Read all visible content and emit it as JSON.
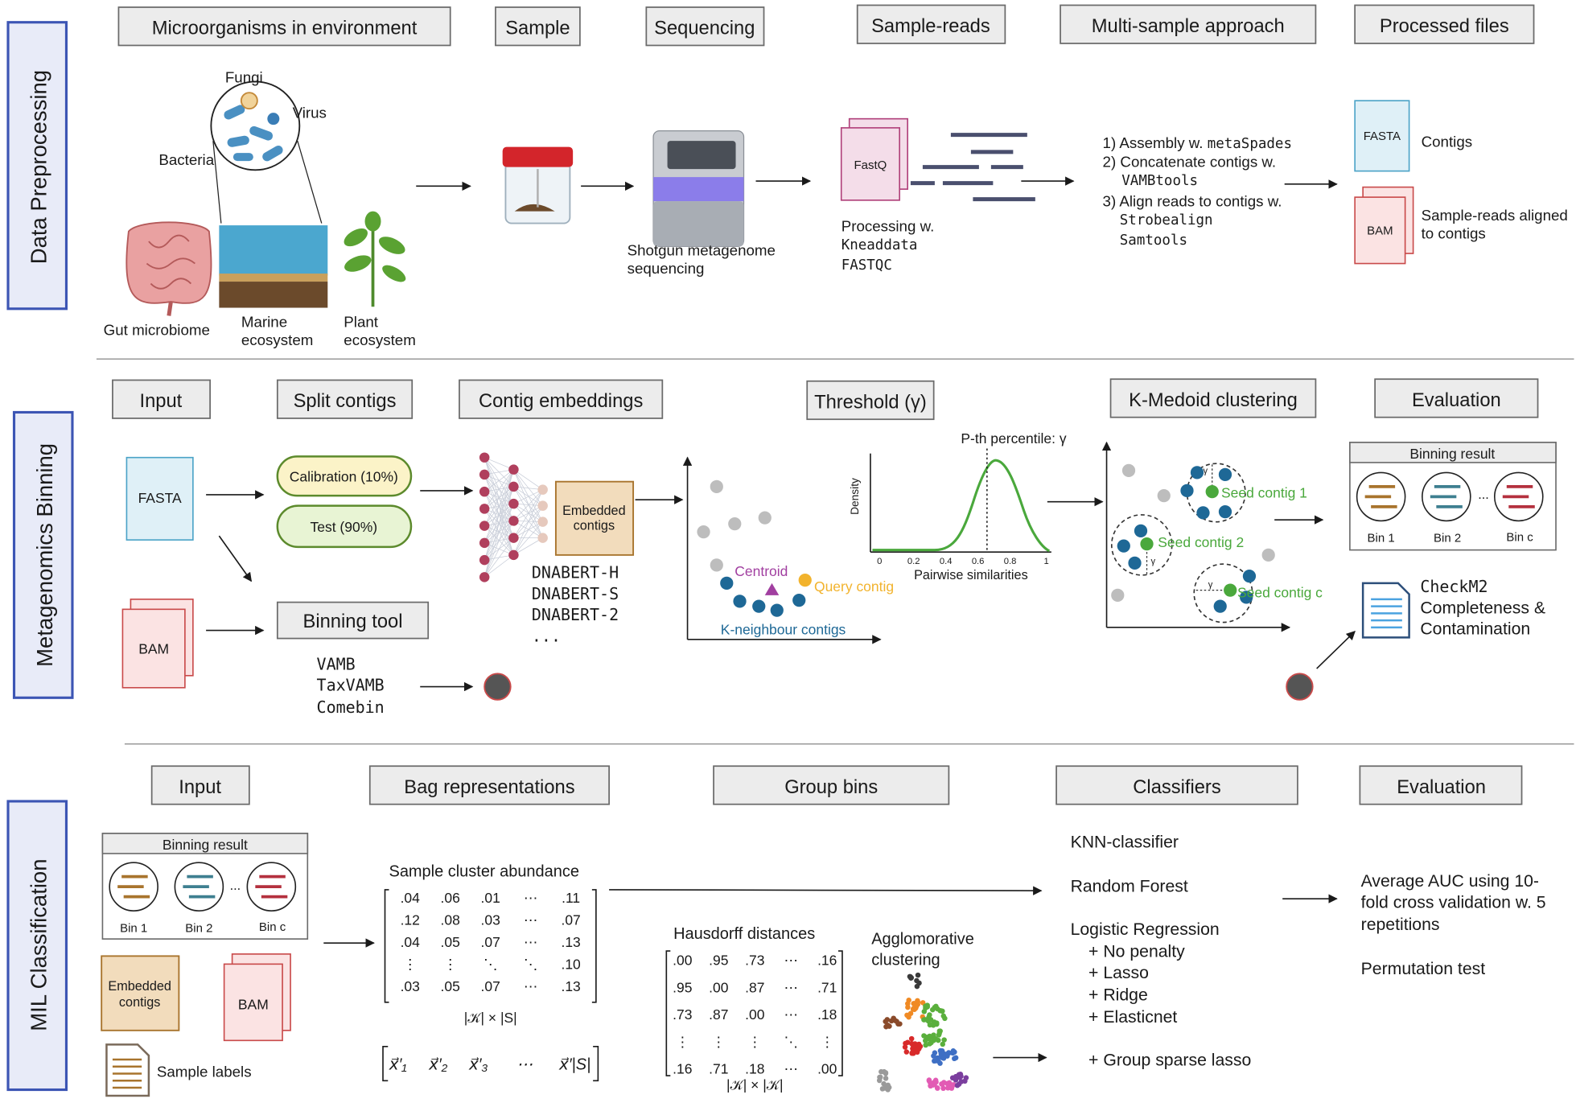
{
  "sections": {
    "preprocessing": "Data Preprocessing",
    "binning": "Metagenomics Binning",
    "mil": "MIL Classification"
  },
  "pre": {
    "h_env": "Microorganisms in environment",
    "h_sample": "Sample",
    "h_seq": "Sequencing",
    "h_reads": "Sample-reads",
    "h_multi": "Multi-sample approach",
    "h_processed": "Processed files",
    "fungi": "Fungi",
    "virus": "Virus",
    "bacteria": "Bacteria",
    "gut": "Gut microbiome",
    "marine_1": "Marine",
    "marine_2": "ecosystem",
    "plant_1": "Plant",
    "plant_2": "ecosystem",
    "seq_1": "Shotgun metagenome",
    "seq_2": "sequencing",
    "fastq": "FastQ",
    "proc_1": "Processing w.",
    "proc_2": "Kneaddata",
    "proc_3": "FASTQC",
    "m1a": "1) Assembly w. ",
    "m1b": "metaSpades",
    "m2": "2) Concatenate contigs w.",
    "m2b": "VAMBtools",
    "m3": "3) Align reads to contigs w.",
    "m3b": "Strobealign",
    "m3c": "Samtools",
    "fasta": "FASTA",
    "contigs": "Contigs",
    "bam": "BAM",
    "aligned_1": "Sample-reads aligned",
    "aligned_2": "to contigs"
  },
  "bin": {
    "h_input": "Input",
    "h_split": "Split contigs",
    "h_embed": "Contig embeddings",
    "h_threshold": "Threshold (γ)",
    "h_kmedoid": "K-Medoid clustering",
    "h_eval": "Evaluation",
    "fasta": "FASTA",
    "bam": "BAM",
    "calibration": "Calibration (10%)",
    "test": "Test (90%)",
    "tool": "Binning tool",
    "tools": [
      "VAMB",
      "TaxVAMB",
      "Comebin"
    ],
    "embedded_1": "Embedded",
    "embedded_2": "contigs",
    "models": [
      "DNABERT-H",
      "DNABERT-S",
      "DNABERT-2",
      "..."
    ],
    "centroid": "Centroid",
    "query": "Query contig",
    "kneighbour": "K-neighbour contigs",
    "percentile": "P-th percentile: γ",
    "density": "Density",
    "pairwise": "Pairwise similarities",
    "ticks": [
      "0",
      "0.2",
      "0.4",
      "0.6",
      "0.8",
      "1"
    ],
    "seed_1": "Seed contig 1",
    "seed_2": "Seed contig 2",
    "seed_c": "Seed contig c",
    "gamma": "γ",
    "binning_result": "Binning result",
    "bin1": "Bin 1",
    "bin2": "Bin 2",
    "binc": "Bin c",
    "dots": "...",
    "checkm_1": "CheckM2",
    "checkm_2": "Completeness &",
    "checkm_3": "Contamination"
  },
  "mil": {
    "h_input": "Input",
    "h_bag": "Bag representations",
    "h_group": "Group bins",
    "h_classifiers": "Classifiers",
    "h_eval": "Evaluation",
    "binning_result": "Binning result",
    "bin1": "Bin 1",
    "bin2": "Bin 2",
    "binc": "Bin c",
    "dots": "...",
    "embedded_1": "Embedded",
    "embedded_2": "contigs",
    "bam": "BAM",
    "labels": "Sample labels",
    "abundance_title": "Sample cluster abundance",
    "abundance_rows": [
      [
        ".04",
        ".06",
        ".01",
        "⋯",
        ".11"
      ],
      [
        ".12",
        ".08",
        ".03",
        "⋯",
        ".07"
      ],
      [
        ".04",
        ".05",
        ".07",
        "⋯",
        ".13"
      ],
      [
        "⋮",
        "⋮",
        "⋱",
        "⋱",
        ".10"
      ],
      [
        ".03",
        ".05",
        ".07",
        "⋯",
        ".13"
      ]
    ],
    "abundance_dim": "|𝒦| × |S|",
    "bag_vec": [
      "x⃗′₁",
      "x⃗′₂",
      "x⃗′₃",
      "⋯",
      "x⃗′|S|"
    ],
    "hausdorff_title": "Hausdorff distances",
    "hausdorff_rows": [
      [
        ".00",
        ".95",
        ".73",
        "⋯",
        ".16"
      ],
      [
        ".95",
        ".00",
        ".87",
        "⋯",
        ".71"
      ],
      [
        ".73",
        ".87",
        ".00",
        "⋯",
        ".18"
      ],
      [
        "⋮",
        "⋮",
        "⋮",
        "⋱",
        "⋮"
      ],
      [
        ".16",
        ".71",
        ".18",
        "⋯",
        ".00"
      ]
    ],
    "hausdorff_dim": "|𝒦| × |𝒦|",
    "agglo_1": "Agglomorative",
    "agglo_2": "clustering",
    "classifiers": [
      "KNN-classifier",
      "Random Forest",
      "Logistic Regression",
      "+ No penalty",
      "+ Lasso",
      "+ Ridge",
      "+ Elasticnet",
      "+ Group sparse lasso"
    ],
    "eval_1": "Average AUC  using 10-",
    "eval_2": "fold cross validation w. 5",
    "eval_3": "repetitions",
    "eval_4": "Permutation test"
  },
  "colors": {
    "section_border": "#3c55b4",
    "section_fill": "#e8ebf8",
    "fasta_fill": "#dff0f7",
    "fasta_border": "#4ba3c7",
    "bam_fill": "#fbe3e3",
    "bam_border": "#c94a4a",
    "fastq_fill": "#f4dde9",
    "fastq_border": "#b0407a",
    "calib_fill": "#fbf3c8",
    "test_fill": "#e8f4d4",
    "group_border": "#5c8a2c",
    "embedded_fill": "#f2dcbc",
    "embedded_border": "#a8742d",
    "node_red": "#b03f5d",
    "blue_dot": "#1e6896",
    "green": "#4aa83c",
    "orange": "#f2b32d",
    "purple": "#a13fa0"
  }
}
